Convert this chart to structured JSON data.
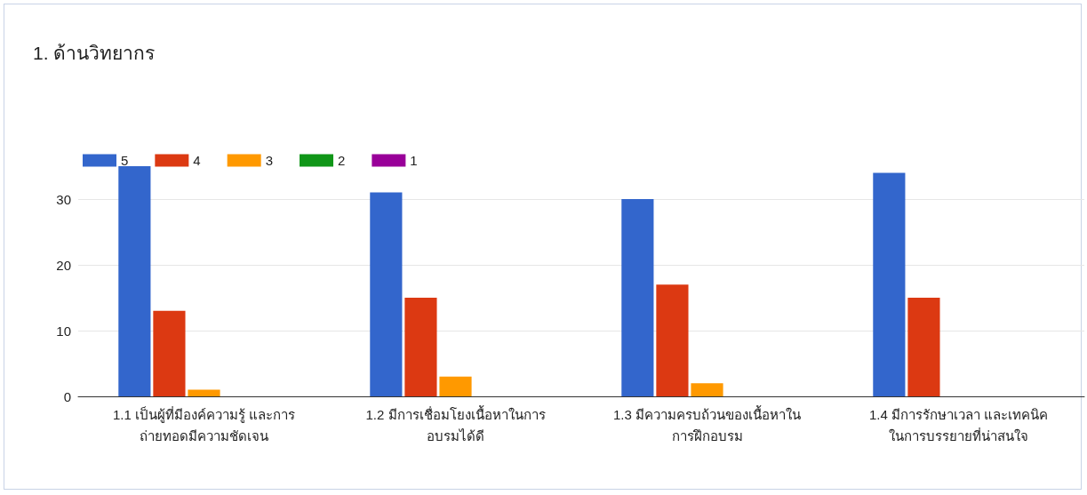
{
  "chart_data": {
    "type": "bar",
    "title": "1. ด้านวิทยากร",
    "categories": [
      "1.1 เป็นผู้ที่มีองค์ความรู้ และการ\nถ่ายทอดมีความชัดเจน",
      "1.2 มีการเชื่อมโยงเนื้อหาในการ\nอบรมได้ดี",
      "1.3 มีความครบถ้วนของเนื้อหาใน\nการฝึกอบรม",
      "1.4 มีการรักษาเวลา และเทคนิค\nในการบรรยายที่น่าสนใจ"
    ],
    "series": [
      {
        "name": "5",
        "color": "#3366cc",
        "values": [
          35,
          31,
          30,
          34
        ]
      },
      {
        "name": "4",
        "color": "#dc3912",
        "values": [
          13,
          15,
          17,
          15
        ]
      },
      {
        "name": "3",
        "color": "#ff9900",
        "values": [
          1,
          3,
          2,
          0
        ]
      },
      {
        "name": "2",
        "color": "#109618",
        "values": [
          0,
          0,
          0,
          0
        ]
      },
      {
        "name": "1",
        "color": "#990099",
        "values": [
          0,
          0,
          0,
          0
        ]
      }
    ],
    "ylim": [
      0,
      35
    ],
    "yticks": [
      0,
      10,
      20,
      30
    ],
    "grid": "y",
    "legend": "top left"
  }
}
